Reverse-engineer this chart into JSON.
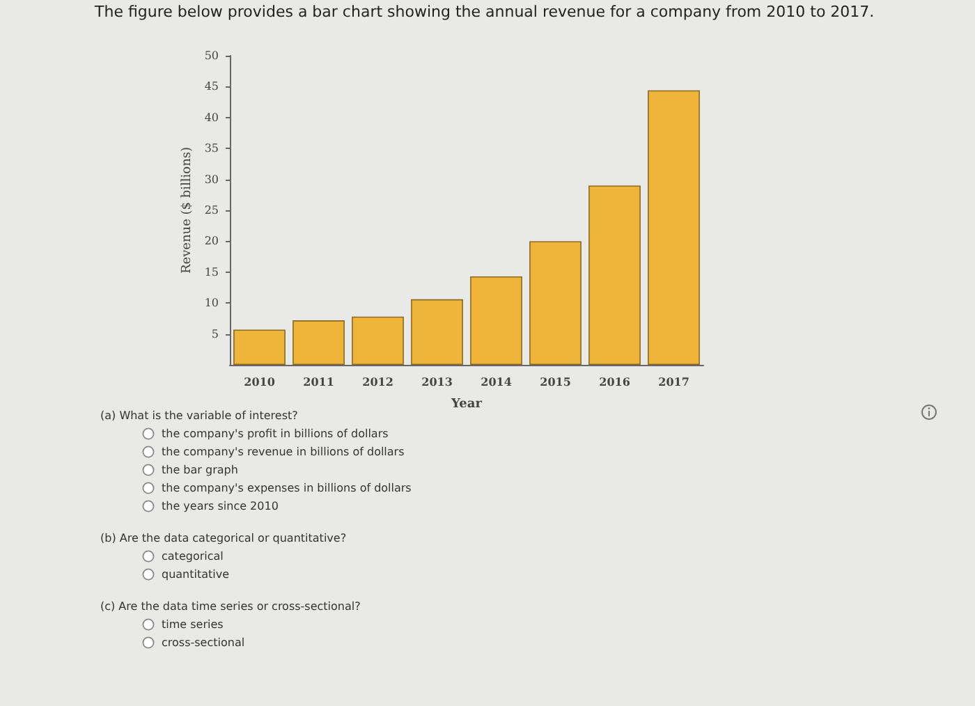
{
  "chart_data": {
    "type": "bar",
    "title": "The figure below provides a bar chart showing the annual revenue for a company from 2010 to 2017.",
    "xlabel": "Year",
    "ylabel": "Revenue ($ billions)",
    "categories": [
      "2010",
      "2011",
      "2012",
      "2013",
      "2014",
      "2015",
      "2016",
      "2017"
    ],
    "values": [
      5.7,
      7.2,
      7.8,
      10.6,
      14.3,
      20,
      29,
      44.4
    ],
    "color": "#efb43a",
    "ylim": [
      0,
      50
    ],
    "yticks": [
      5,
      10,
      15,
      20,
      25,
      30,
      35,
      40,
      45,
      50
    ],
    "grid": false,
    "annotations": [
      "(a) What is the variable of interest?\nthe company's profit in billions of dollars\nthe company's revenue in billions of dollars\nthe bar graph\nthe company's expenses in billions of dollars\nthe years since 2010",
      "(b) Are the data categorical or quantitative?\ncategorical\nquantitative",
      "(c) Are the data time series or cross-sectional?\ntime series\ncross-sectional"
    ]
  }
}
